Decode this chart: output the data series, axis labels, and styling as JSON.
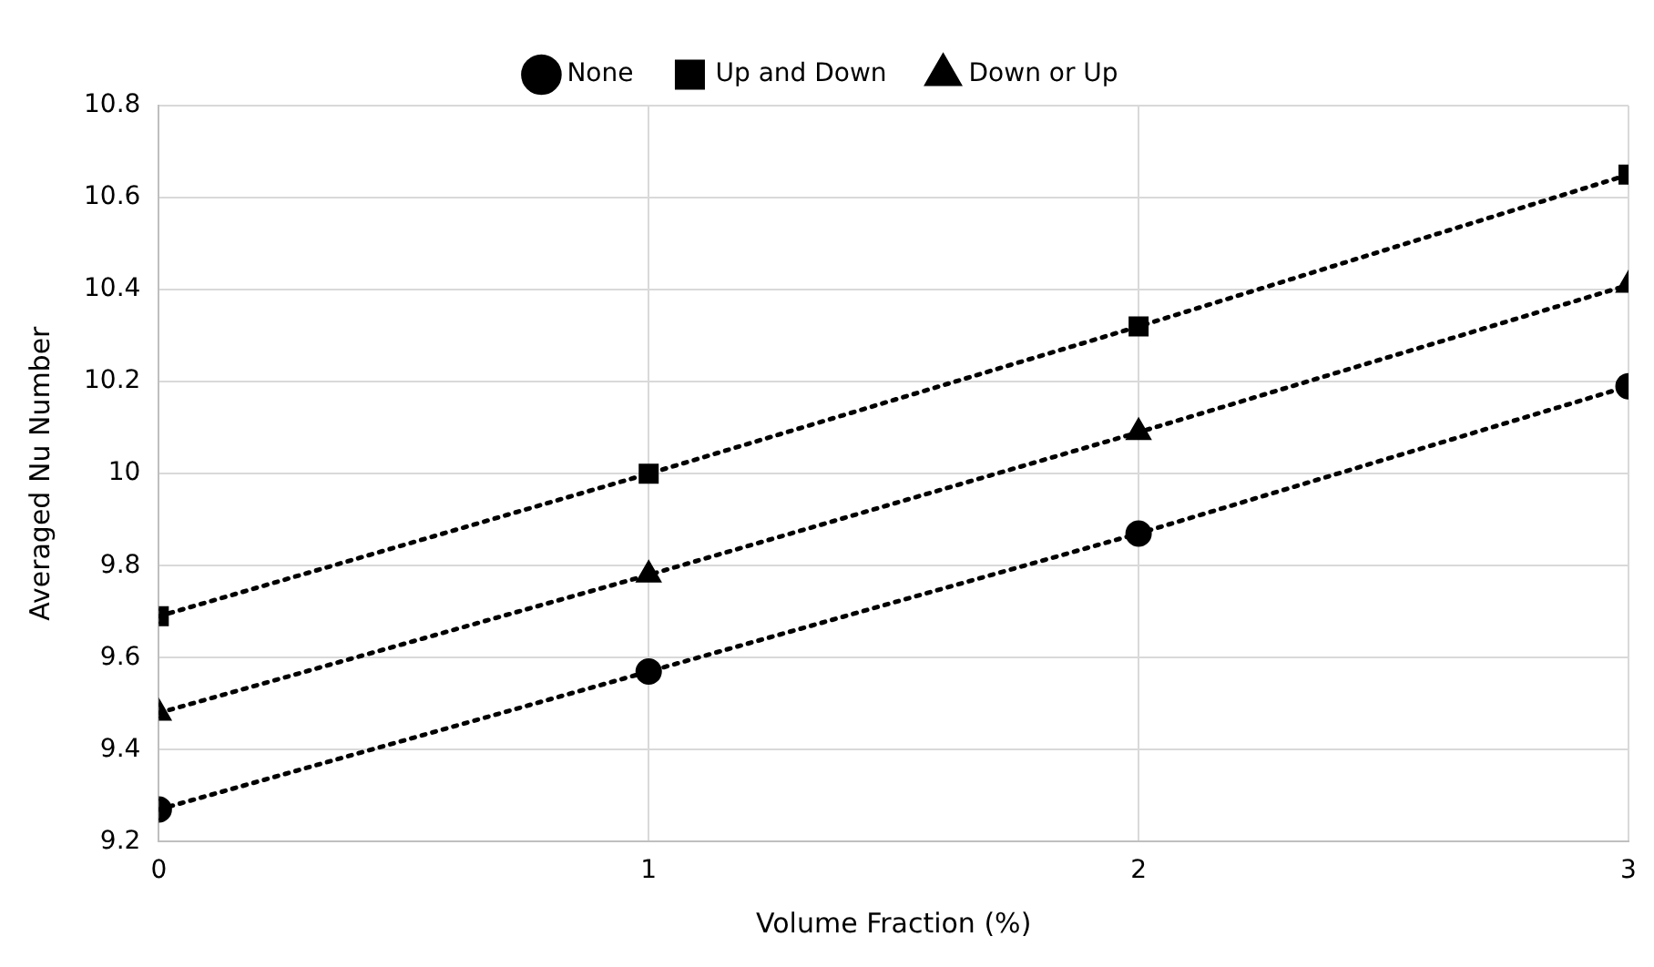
{
  "chart_data": {
    "type": "line",
    "xlabel": "Volume Fraction (%)",
    "ylabel": "Averaged Nu Number",
    "x": [
      0,
      1,
      2,
      3
    ],
    "xlim": [
      0,
      3
    ],
    "xticks": [
      0,
      1,
      2,
      3
    ],
    "ylim": [
      9.2,
      10.8
    ],
    "yticks": [
      9.2,
      9.4,
      9.6,
      9.8,
      10,
      10.2,
      10.4,
      10.6,
      10.8
    ],
    "grid": true,
    "legend": "top",
    "line_style": "dotted",
    "series": [
      {
        "name": "None",
        "color": "#000000",
        "marker": "circle",
        "values": [
          9.27,
          9.57,
          9.87,
          10.19
        ]
      },
      {
        "name": "Up and Down",
        "color": "#000000",
        "marker": "square",
        "values": [
          9.69,
          10.0,
          10.32,
          10.65
        ]
      },
      {
        "name": "Down or Up",
        "color": "#000000",
        "marker": "triangle",
        "values": [
          9.48,
          9.78,
          10.09,
          10.41
        ]
      }
    ]
  }
}
